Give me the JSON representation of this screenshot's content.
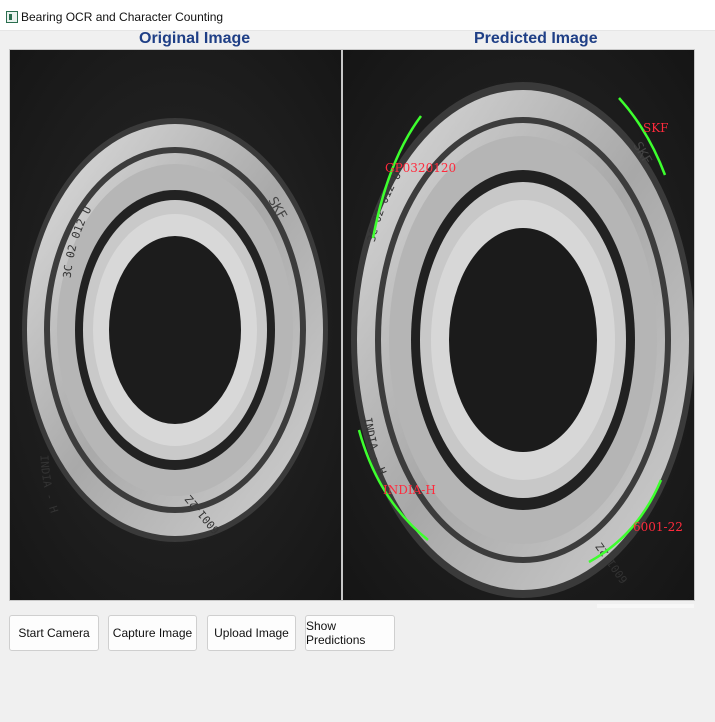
{
  "window": {
    "title": "Bearing OCR and Character Counting",
    "icon": "app-window-icon"
  },
  "panels": {
    "original": {
      "title": "Original Image"
    },
    "predicted": {
      "title": "Predicted Image",
      "detections": [
        {
          "label": "GP0320120"
        },
        {
          "label": "SKF"
        },
        {
          "label": "INDIA-H"
        },
        {
          "label": "6001-22"
        }
      ]
    }
  },
  "bearing_markings": {
    "left": {
      "top_text": "3C 02 012 U",
      "brand": "SKF",
      "bottom_left": "INDIA - H",
      "bottom_right": "6001-2Z"
    },
    "right": {
      "top_text": "3C 02 012 U",
      "brand": "SKF",
      "bottom_left": "INDIA - H",
      "bottom_right": "6001-2Z"
    }
  },
  "buttons": {
    "start_camera": "Start Camera",
    "capture_image": "Capture Image",
    "upload_image": "Upload Image",
    "show_predictions": "Show Predictions"
  },
  "colors": {
    "panel_title": "#1f3f86",
    "detection_box": "#3dff2e",
    "detection_label": "#ff2a3c"
  }
}
